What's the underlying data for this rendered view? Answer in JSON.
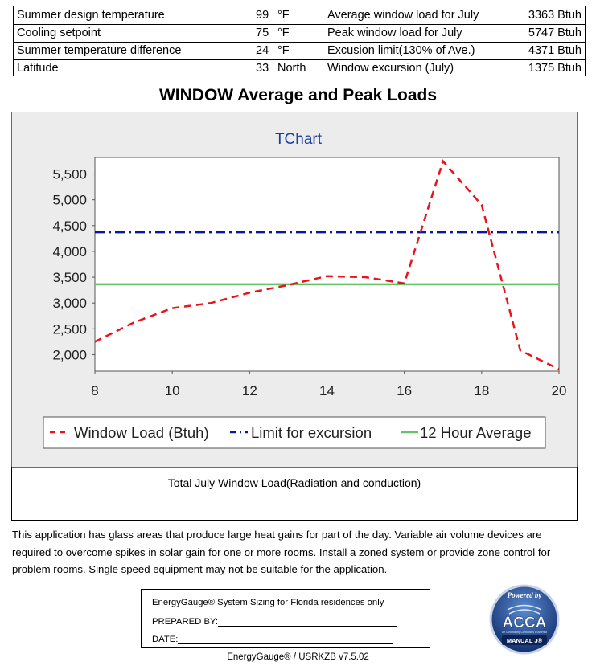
{
  "summary": {
    "left": [
      {
        "label": "Summer design temperature",
        "value": "99",
        "unit": "°F"
      },
      {
        "label": "Cooling setpoint",
        "value": "75",
        "unit": "°F"
      },
      {
        "label": "Summer temperature difference",
        "value": "24",
        "unit": "°F"
      },
      {
        "label": "Latitude",
        "value": "33",
        "unit": "North"
      }
    ],
    "right": [
      {
        "label": "Average window load for July",
        "value": "3363 Btuh"
      },
      {
        "label": "Peak window load for July",
        "value": "5747 Btuh"
      },
      {
        "label": "Excusion limit(130% of Ave.)",
        "value": "4371 Btuh"
      },
      {
        "label": "Window excursion (July)",
        "value": "1375 Btuh"
      }
    ]
  },
  "page_title": "WINDOW Average and Peak Loads",
  "chart_data": {
    "type": "line",
    "title": "TChart",
    "x": [
      8,
      9,
      10,
      11,
      12,
      13,
      14,
      15,
      16,
      17,
      18,
      19,
      20
    ],
    "series": [
      {
        "name": "Window Load (Btuh)",
        "color": "#e8141b",
        "style": "dash",
        "values": [
          2250,
          2620,
          2900,
          3000,
          3200,
          3350,
          3520,
          3500,
          3380,
          5747,
          4900,
          2080,
          1720
        ]
      },
      {
        "name": "Limit for excursion",
        "color": "#0a18a0",
        "style": "dashdot",
        "values": [
          4371,
          4371,
          4371,
          4371,
          4371,
          4371,
          4371,
          4371,
          4371,
          4371,
          4371,
          4371,
          4371
        ]
      },
      {
        "name": "12 Hour Average",
        "color": "#66c266",
        "style": "solid",
        "values": [
          3363,
          3363,
          3363,
          3363,
          3363,
          3363,
          3363,
          3363,
          3363,
          3363,
          3363,
          3363,
          3363
        ]
      }
    ],
    "xticks": [
      8,
      10,
      12,
      14,
      16,
      18,
      20
    ],
    "yticks": [
      2000,
      2500,
      3000,
      3500,
      4000,
      4500,
      5000,
      5500
    ],
    "ytick_labels": [
      "2,000",
      "2,500",
      "3,000",
      "3,500",
      "4,000",
      "4,500",
      "5,000",
      "5,500"
    ],
    "xlim": [
      8,
      20
    ],
    "ylim": [
      1680,
      5820
    ],
    "legend_position": "bottom",
    "xlabel": "",
    "ylabel": ""
  },
  "caption": "Total July Window Load(Radiation and conduction)",
  "notes": "This application has glass areas that produce large heat gains for part of the day.  Variable air volume devices are required to overcome spikes in solar gain for one or more rooms. Install a zoned system or provide zone control for problem rooms. Single speed equipment may not be suitable for the application.",
  "sign_box": {
    "line1": "EnergyGauge® System Sizing for Florida residences only",
    "prepared_label": "PREPARED BY:",
    "date_label": "DATE:"
  },
  "logo": {
    "top": "Powered by",
    "name": "ACCA",
    "sub": "Air Conditioning Contractors of America",
    "manual": "MANUAL J®"
  },
  "footer": "EnergyGauge® / USRKZB v7.5.02"
}
